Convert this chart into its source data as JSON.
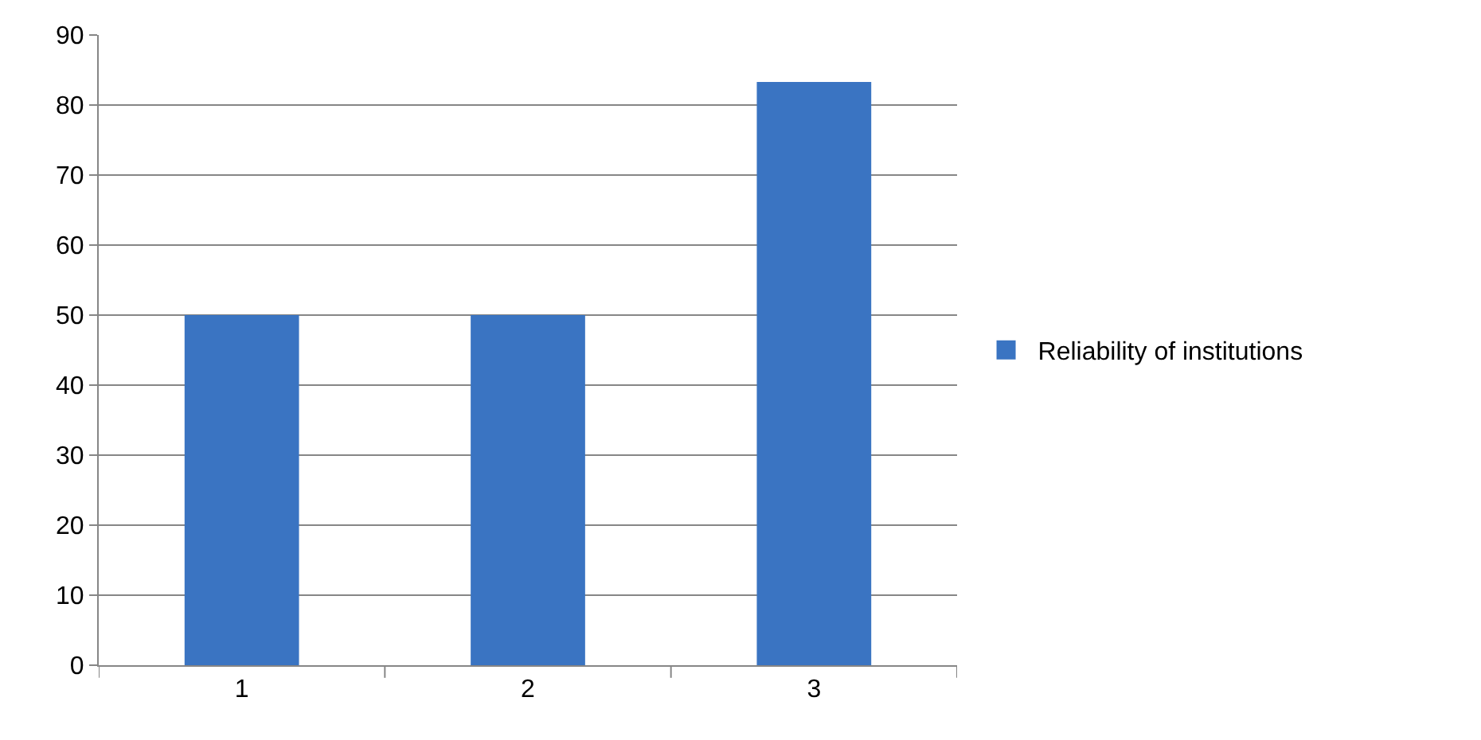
{
  "chart_data": {
    "type": "bar",
    "categories": [
      "1",
      "2",
      "3"
    ],
    "series": [
      {
        "name": "Reliability of institutions",
        "color": "#3a74c2",
        "values": [
          50,
          50,
          83.3
        ]
      }
    ],
    "ylim": [
      0,
      90
    ],
    "yticks": [
      0,
      10,
      20,
      30,
      40,
      50,
      60,
      70,
      80,
      90
    ],
    "grid": "y",
    "legend": "right"
  }
}
